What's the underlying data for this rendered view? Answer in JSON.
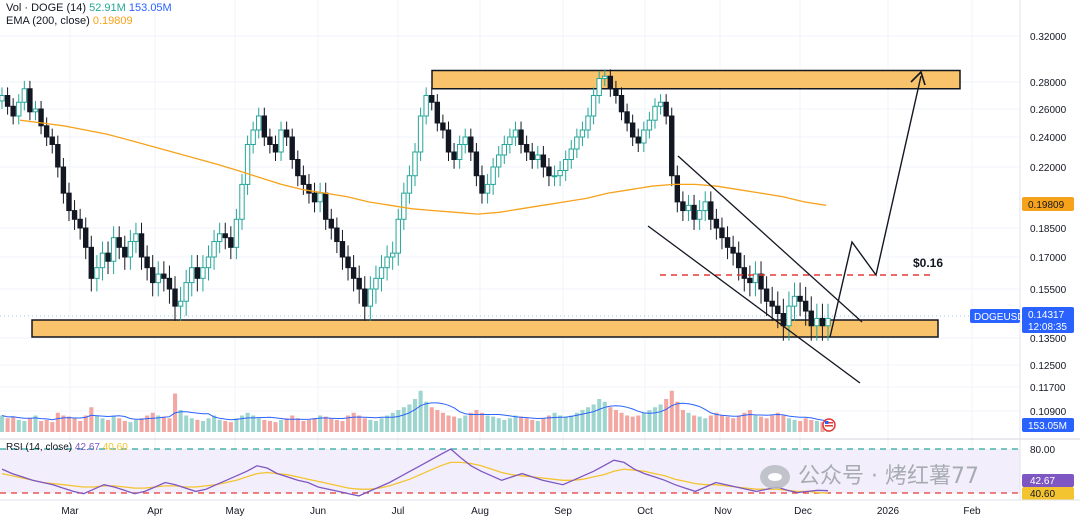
{
  "header": {
    "vol_label": "Vol · DOGE (14)",
    "vol_value_1": "52.91M",
    "vol_value_2": "153.05M",
    "ema_label": "EMA (200, close)",
    "ema_value": "0.19809",
    "rsi_label": "RSI (14, close)",
    "rsi_value_1": "42.67",
    "rsi_value_2": "40.60"
  },
  "colors": {
    "up": "#26a69a",
    "down": "#131722",
    "ema": "#f7a21b",
    "zone_fill": "#f9c36b",
    "zone_stroke": "#131722",
    "red_dash": "#e53935",
    "vol_ma": "#2962ff",
    "rsi_line": "#7e57c2",
    "rsi_ma": "#f4c430",
    "green_dash": "#26a69a",
    "price_label_bg": "#2962ff",
    "ema_label_bg": "#f7a21b"
  },
  "price_axis": {
    "ticks": [
      "0.32000",
      "0.28000",
      "0.26000",
      "0.24000",
      "0.22000",
      "0.19809",
      "0.18500",
      "0.17000",
      "0.15500",
      "0.14317",
      "0.13500",
      "0.12500",
      "0.11700",
      "0.10900",
      "153.05M"
    ],
    "symbol_label": "DOGEUSD",
    "current_price": "0.14317",
    "countdown": "12:08:35",
    "ema_tag": "0.19809",
    "volume_tag": "153.05M"
  },
  "rsi_axis": {
    "ticks": [
      "80.00",
      "42.67",
      "40.60"
    ]
  },
  "x_axis": {
    "labels": [
      "Mar",
      "Apr",
      "May",
      "Jun",
      "Jul",
      "Aug",
      "Sep",
      "Oct",
      "Nov",
      "Dec",
      "2026",
      "Feb"
    ]
  },
  "annotations": {
    "target_label": "$0.16"
  },
  "watermark": "公众号 · 烤红薯77",
  "chart_data": {
    "type": "candlestick",
    "symbol": "DOGEUSD",
    "title": "",
    "x_range": [
      "Feb",
      "Feb"
    ],
    "y_range": [
      0.1,
      0.33
    ],
    "resistance_zone": [
      0.275,
      0.29
    ],
    "support_zone": [
      0.136,
      0.143
    ],
    "target_level": 0.16,
    "rsi_levels": [
      80,
      40.6
    ],
    "closes": [
      0.27,
      0.262,
      0.255,
      0.265,
      0.275,
      0.258,
      0.26,
      0.248,
      0.24,
      0.235,
      0.22,
      0.205,
      0.195,
      0.19,
      0.185,
      0.175,
      0.16,
      0.165,
      0.172,
      0.168,
      0.18,
      0.175,
      0.17,
      0.178,
      0.182,
      0.17,
      0.165,
      0.158,
      0.162,
      0.16,
      0.155,
      0.148,
      0.15,
      0.158,
      0.165,
      0.16,
      0.165,
      0.17,
      0.178,
      0.182,
      0.18,
      0.175,
      0.19,
      0.21,
      0.235,
      0.245,
      0.255,
      0.24,
      0.235,
      0.23,
      0.245,
      0.24,
      0.225,
      0.215,
      0.21,
      0.205,
      0.2,
      0.205,
      0.19,
      0.185,
      0.178,
      0.17,
      0.165,
      0.16,
      0.155,
      0.148,
      0.155,
      0.16,
      0.165,
      0.17,
      0.172,
      0.19,
      0.205,
      0.215,
      0.23,
      0.255,
      0.27,
      0.265,
      0.25,
      0.245,
      0.23,
      0.225,
      0.235,
      0.24,
      0.23,
      0.215,
      0.205,
      0.21,
      0.22,
      0.228,
      0.235,
      0.24,
      0.245,
      0.235,
      0.23,
      0.225,
      0.228,
      0.22,
      0.215,
      0.215,
      0.218,
      0.225,
      0.232,
      0.24,
      0.245,
      0.255,
      0.27,
      0.283,
      0.285,
      0.275,
      0.27,
      0.258,
      0.25,
      0.24,
      0.236,
      0.245,
      0.252,
      0.262,
      0.265,
      0.255,
      0.215,
      0.2,
      0.195,
      0.198,
      0.19,
      0.195,
      0.2,
      0.19,
      0.185,
      0.18,
      0.175,
      0.172,
      0.165,
      0.16,
      0.158,
      0.162,
      0.155,
      0.15,
      0.148,
      0.145,
      0.14,
      0.148,
      0.152,
      0.15,
      0.146,
      0.14,
      0.143,
      0.14,
      0.143
    ],
    "volume_relative": [
      0.3,
      0.25,
      0.28,
      0.22,
      0.2,
      0.25,
      0.3,
      0.2,
      0.22,
      0.18,
      0.35,
      0.3,
      0.28,
      0.25,
      0.2,
      0.3,
      0.45,
      0.3,
      0.25,
      0.22,
      0.3,
      0.25,
      0.2,
      0.18,
      0.22,
      0.25,
      0.3,
      0.35,
      0.3,
      0.28,
      0.25,
      0.7,
      0.4,
      0.3,
      0.25,
      0.22,
      0.2,
      0.25,
      0.3,
      0.22,
      0.2,
      0.18,
      0.25,
      0.3,
      0.35,
      0.3,
      0.25,
      0.22,
      0.2,
      0.18,
      0.22,
      0.25,
      0.3,
      0.25,
      0.2,
      0.22,
      0.25,
      0.3,
      0.28,
      0.25,
      0.22,
      0.2,
      0.3,
      0.35,
      0.3,
      0.25,
      0.22,
      0.2,
      0.25,
      0.3,
      0.35,
      0.4,
      0.45,
      0.5,
      0.6,
      0.75,
      0.55,
      0.45,
      0.4,
      0.35,
      0.3,
      0.28,
      0.25,
      0.3,
      0.35,
      0.4,
      0.35,
      0.3,
      0.28,
      0.25,
      0.22,
      0.25,
      0.3,
      0.28,
      0.25,
      0.22,
      0.2,
      0.25,
      0.3,
      0.35,
      0.3,
      0.28,
      0.3,
      0.35,
      0.4,
      0.45,
      0.5,
      0.6,
      0.55,
      0.45,
      0.4,
      0.35,
      0.3,
      0.28,
      0.3,
      0.35,
      0.4,
      0.45,
      0.5,
      0.6,
      0.75,
      0.55,
      0.4,
      0.35,
      0.3,
      0.28,
      0.25,
      0.3,
      0.35,
      0.3,
      0.28,
      0.25,
      0.3,
      0.35,
      0.4,
      0.3,
      0.28,
      0.25,
      0.3,
      0.35,
      0.3,
      0.25,
      0.22,
      0.2,
      0.25,
      0.22,
      0.2,
      0.18,
      0.15
    ],
    "ema200": [
      0.252,
      0.25,
      0.248,
      0.245,
      0.242,
      0.238,
      0.234,
      0.23,
      0.226,
      0.222,
      0.218,
      0.214,
      0.21,
      0.207,
      0.205,
      0.203,
      0.2,
      0.198,
      0.196,
      0.195,
      0.194,
      0.193,
      0.194,
      0.196,
      0.198,
      0.2,
      0.202,
      0.205,
      0.207,
      0.209,
      0.21,
      0.21,
      0.209,
      0.207,
      0.205,
      0.203,
      0.2,
      0.198
    ],
    "rsi": [
      62,
      58,
      55,
      52,
      50,
      48,
      45,
      42,
      40,
      44,
      48,
      46,
      43,
      40,
      42,
      46,
      50,
      48,
      45,
      42,
      44,
      48,
      52,
      56,
      60,
      65,
      63,
      58,
      55,
      52,
      50,
      46,
      44,
      42,
      40,
      38,
      42,
      46,
      50,
      55,
      60,
      65,
      70,
      75,
      80,
      72,
      65,
      60,
      56,
      52,
      55,
      58,
      55,
      52,
      50,
      48,
      52,
      56,
      60,
      65,
      70,
      68,
      62,
      58,
      55,
      52,
      48,
      45,
      42,
      46,
      50,
      48,
      46,
      44,
      42,
      44,
      46,
      43,
      41,
      42,
      43,
      42.67
    ],
    "rsi_ma": [
      58,
      56,
      54,
      52,
      50,
      49,
      48,
      47,
      46,
      46,
      47,
      47,
      46,
      45,
      45,
      46,
      47,
      47,
      46,
      46,
      47,
      48,
      50,
      52,
      55,
      58,
      59,
      58,
      57,
      55,
      53,
      51,
      49,
      47,
      45,
      44,
      44,
      45,
      47,
      50,
      53,
      57,
      61,
      65,
      68,
      68,
      67,
      65,
      62,
      59,
      57,
      56,
      55,
      54,
      53,
      52,
      52,
      53,
      55,
      57,
      60,
      62,
      61,
      60,
      58,
      56,
      53,
      51,
      49,
      48,
      48,
      47,
      46,
      45,
      44,
      44,
      44,
      43,
      42,
      42,
      41,
      40.6
    ]
  }
}
